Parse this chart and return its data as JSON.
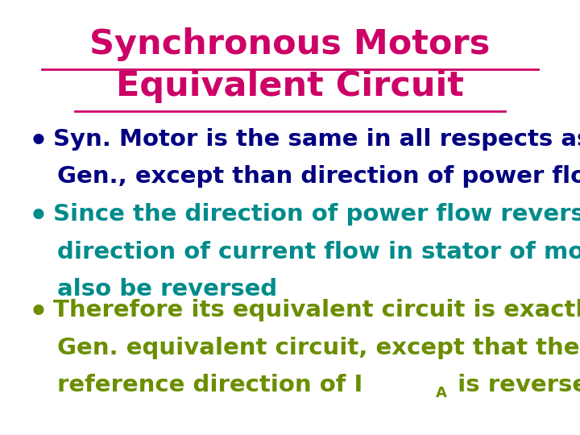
{
  "title_line1": "Synchronous Motors",
  "title_line2": "Equivalent Circuit",
  "title_color": "#CC0066",
  "background_color": "#FFFFFF",
  "bullet1_text_line1": "Syn. Motor is the same in all respects as Syn.",
  "bullet1_text_line2": "Gen., except than direction of power flow",
  "bullet1_color": "#000080",
  "bullet2_text_line1": "Since the direction of power flow reversed,",
  "bullet2_text_line2": "direction of current flow in stator of motor may",
  "bullet2_text_line3": "also be reversed",
  "bullet2_color": "#008B8B",
  "bullet3_text_line1": "Therefore its equivalent circuit is exactly as Syn.",
  "bullet3_text_line2": "Gen. equivalent circuit, except that the",
  "bullet3_text_line3": "reference direction of I",
  "bullet3_text_line3b": "A",
  "bullet3_text_line3c": " is reversed",
  "bullet3_color": "#6B8E00",
  "font_size_title": 31,
  "font_size_body": 21,
  "figsize": [
    7.2,
    5.4
  ],
  "dpi": 100
}
